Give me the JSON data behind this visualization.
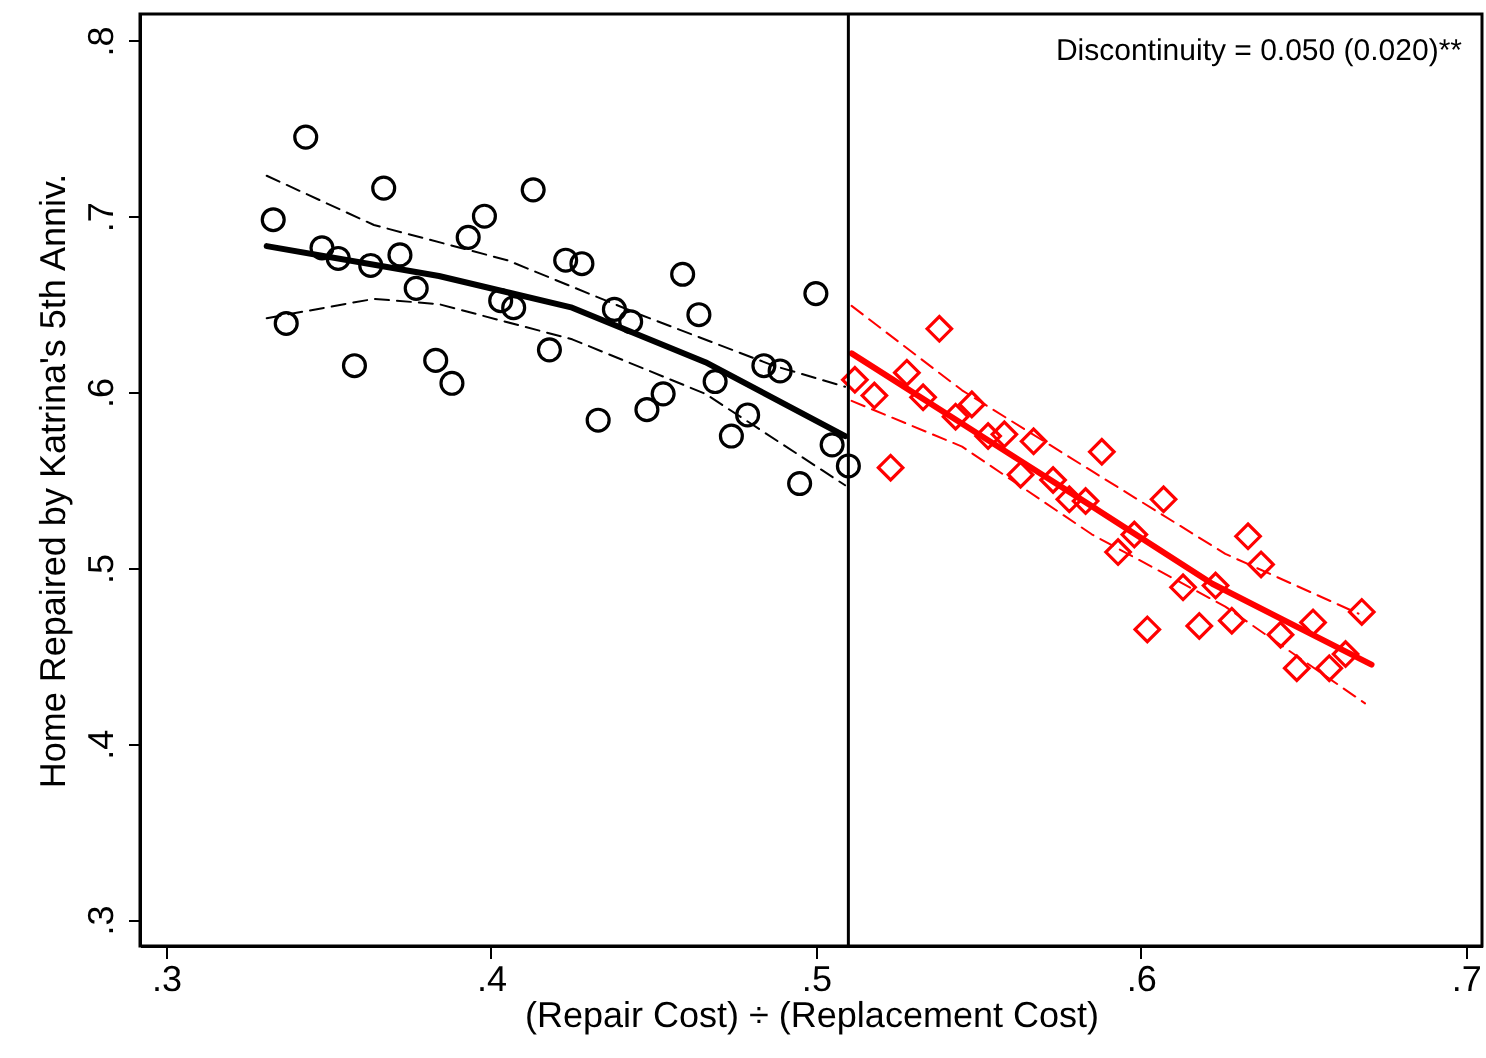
{
  "chart_data": {
    "type": "scatter",
    "xlabel": "(Repair Cost) ÷ (Replacement Cost)",
    "ylabel": "Home Repaired by Katrina's 5th Anniv.",
    "annotations": [
      "Discontinuity = 0.050  (0.020)**"
    ],
    "xlim": [
      0.292,
      0.705
    ],
    "ylim": [
      0.285,
      0.815
    ],
    "xticks": [
      {
        "value": 0.3,
        "label": ".3"
      },
      {
        "value": 0.4,
        "label": ".4"
      },
      {
        "value": 0.5,
        "label": ".5"
      },
      {
        "value": 0.6,
        "label": ".6"
      },
      {
        "value": 0.7,
        "label": ".7"
      }
    ],
    "yticks": [
      {
        "value": 0.3,
        "label": ".3"
      },
      {
        "value": 0.4,
        "label": ".4"
      },
      {
        "value": 0.5,
        "label": ".5"
      },
      {
        "value": 0.6,
        "label": ".6"
      },
      {
        "value": 0.7,
        "label": ".7"
      },
      {
        "value": 0.8,
        "label": ".8"
      }
    ],
    "grid": false,
    "ref_lines": [
      {
        "axis": "x",
        "value": 0.51,
        "color": "#000000"
      }
    ],
    "series": [
      {
        "type": "scatter",
        "marker": "circle",
        "color": "#000000",
        "x": [
          0.333,
          0.337,
          0.343,
          0.348,
          0.353,
          0.358,
          0.363,
          0.367,
          0.372,
          0.377,
          0.383,
          0.388,
          0.393,
          0.398,
          0.403,
          0.407,
          0.413,
          0.418,
          0.423,
          0.428,
          0.433,
          0.438,
          0.443,
          0.448,
          0.453,
          0.459,
          0.464,
          0.469,
          0.474,
          0.479,
          0.484,
          0.489,
          0.495,
          0.5,
          0.505,
          0.51
        ],
        "values": [
          0.698,
          0.639,
          0.745,
          0.682,
          0.676,
          0.615,
          0.672,
          0.716,
          0.678,
          0.659,
          0.618,
          0.605,
          0.688,
          0.7,
          0.652,
          0.648,
          0.715,
          0.624,
          0.675,
          0.673,
          0.584,
          0.647,
          0.64,
          0.59,
          0.599,
          0.667,
          0.644,
          0.606,
          0.575,
          0.587,
          0.615,
          0.612,
          0.548,
          0.656,
          0.57,
          0.558
        ]
      },
      {
        "type": "scatter",
        "marker": "diamond",
        "color": "#ff0000",
        "x": [
          0.512,
          0.518,
          0.523,
          0.528,
          0.533,
          0.538,
          0.543,
          0.548,
          0.553,
          0.558,
          0.563,
          0.567,
          0.573,
          0.578,
          0.583,
          0.588,
          0.593,
          0.598,
          0.602,
          0.607,
          0.613,
          0.618,
          0.623,
          0.628,
          0.633,
          0.637,
          0.643,
          0.648,
          0.653,
          0.658,
          0.663,
          0.668
        ],
        "values": [
          0.607,
          0.598,
          0.557,
          0.611,
          0.597,
          0.636,
          0.586,
          0.593,
          0.575,
          0.576,
          0.553,
          0.572,
          0.55,
          0.539,
          0.538,
          0.566,
          0.509,
          0.519,
          0.465,
          0.539,
          0.489,
          0.467,
          0.49,
          0.47,
          0.518,
          0.502,
          0.462,
          0.443,
          0.469,
          0.443,
          0.451,
          0.475
        ]
      },
      {
        "type": "line",
        "line_style": "solid",
        "color": "#000000",
        "x": [
          0.331,
          0.384,
          0.425,
          0.466,
          0.509
        ],
        "values": [
          0.683,
          0.666,
          0.648,
          0.617,
          0.575
        ]
      },
      {
        "type": "line",
        "line_style": "dashed",
        "color": "#000000",
        "x": [
          0.331,
          0.364,
          0.405,
          0.446,
          0.487,
          0.509
        ],
        "values": [
          0.723,
          0.695,
          0.675,
          0.644,
          0.615,
          0.603
        ]
      },
      {
        "type": "line",
        "line_style": "dashed",
        "color": "#000000",
        "x": [
          0.331,
          0.364,
          0.384,
          0.425,
          0.466,
          0.509
        ],
        "values": [
          0.642,
          0.653,
          0.65,
          0.63,
          0.599,
          0.547
        ]
      },
      {
        "type": "line",
        "line_style": "solid",
        "color": "#ff0000",
        "x": [
          0.511,
          0.585,
          0.622,
          0.671
        ],
        "values": [
          0.622,
          0.535,
          0.491,
          0.445
        ]
      },
      {
        "type": "line",
        "line_style": "dashed",
        "color": "#ff0000",
        "x": [
          0.511,
          0.545,
          0.585,
          0.626,
          0.667
        ],
        "values": [
          0.649,
          0.601,
          0.555,
          0.508,
          0.474
        ]
      },
      {
        "type": "line",
        "line_style": "dashed",
        "color": "#ff0000",
        "x": [
          0.511,
          0.545,
          0.585,
          0.626,
          0.669
        ],
        "values": [
          0.595,
          0.569,
          0.519,
          0.478,
          0.423
        ]
      }
    ]
  }
}
